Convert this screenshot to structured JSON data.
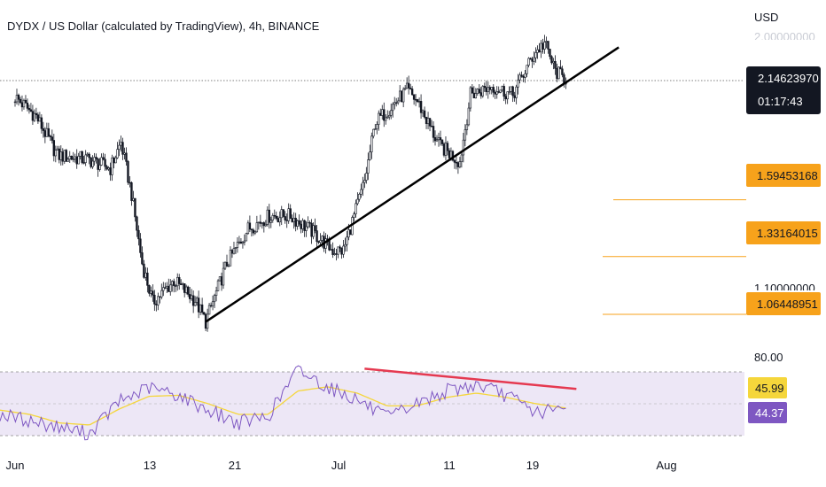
{
  "header": {
    "title": "DYDX / US Dollar (calculated by TradingView), 4h, BINANCE",
    "axis_unit": "USD"
  },
  "price_axis": {
    "ghost_top_label": "2.00000000",
    "ghost_low_label": "1.10000000",
    "last_price": "2.14623970",
    "countdown": "01:17:43",
    "levels": [
      "1.59453168",
      "1.33164015",
      "1.06448951"
    ]
  },
  "rsi_axis": {
    "upper_label": "80.00",
    "ma_value": "45.99",
    "rsi_value": "44.37"
  },
  "x_axis": {
    "ticks": [
      "Jun",
      "13",
      "21",
      "Jul",
      "11",
      "19",
      "Aug"
    ]
  },
  "colors": {
    "candle": "#131722",
    "trendline": "#000000",
    "level": "#f7a21b",
    "rsi": "#7e57c2",
    "rsi_ma": "#f5d63b",
    "rsi_band": "#ede7f6",
    "divergence": "#e53950"
  },
  "chart_data": [
    {
      "type": "candlestick",
      "title": "DYDX / US Dollar (calculated by TradingView), 4h, BINANCE",
      "x_ticks": [
        "Jun",
        "13",
        "21",
        "Jul",
        "11",
        "19",
        "Aug"
      ],
      "y_unit": "USD",
      "last_price": 2.1462397,
      "horizontal_levels": [
        1.59453168,
        1.33164015,
        1.06448951
      ],
      "close_path": [
        {
          "x": "Jun 1",
          "y": 2.07
        },
        {
          "x": "Jun 3",
          "y": 1.98
        },
        {
          "x": "Jun 5",
          "y": 1.8
        },
        {
          "x": "Jun 8",
          "y": 1.78
        },
        {
          "x": "Jun 10",
          "y": 1.74
        },
        {
          "x": "Jun 11",
          "y": 1.86
        },
        {
          "x": "Jun 12",
          "y": 1.62
        },
        {
          "x": "Jun 13",
          "y": 1.3
        },
        {
          "x": "Jun 14",
          "y": 1.12
        },
        {
          "x": "Jun 16",
          "y": 1.22
        },
        {
          "x": "Jun 18",
          "y": 1.13
        },
        {
          "x": "Jun 19",
          "y": 1.03
        },
        {
          "x": "Jun 21",
          "y": 1.3
        },
        {
          "x": "Jun 23",
          "y": 1.46
        },
        {
          "x": "Jun 25",
          "y": 1.52
        },
        {
          "x": "Jun 27",
          "y": 1.52
        },
        {
          "x": "Jun 29",
          "y": 1.45
        },
        {
          "x": "Jul 1",
          "y": 1.36
        },
        {
          "x": "Jul 2",
          "y": 1.36
        },
        {
          "x": "Jul 4",
          "y": 1.68
        },
        {
          "x": "Jul 5",
          "y": 1.95
        },
        {
          "x": "Jul 8",
          "y": 2.1
        },
        {
          "x": "Jul 9",
          "y": 2.05
        },
        {
          "x": "Jul 11",
          "y": 1.85
        },
        {
          "x": "Jul 13",
          "y": 1.77
        },
        {
          "x": "Jul 14",
          "y": 2.08
        },
        {
          "x": "Jul 16",
          "y": 2.12
        },
        {
          "x": "Jul 18",
          "y": 2.08
        },
        {
          "x": "Jul 20",
          "y": 2.27
        },
        {
          "x": "Jul 21",
          "y": 2.32
        },
        {
          "x": "Jul 22",
          "y": 2.19
        },
        {
          "x": "Jul 23",
          "y": 2.15
        }
      ],
      "trendline": [
        {
          "x": "Jun 19",
          "y": 1.03
        },
        {
          "x": "Jul 28",
          "y": 2.3
        }
      ]
    },
    {
      "type": "line",
      "title": "RSI",
      "upper_band": 80.0,
      "series": [
        {
          "values": [
            40,
            34,
            28,
            22,
            52,
            65,
            58,
            44,
            32,
            38,
            82,
            66,
            54,
            36,
            50,
            62,
            68,
            58,
            42,
            44.37
          ]
        },
        {
          "values": [
            44,
            40,
            32,
            30,
            45,
            57,
            58,
            50,
            40,
            40,
            62,
            66,
            60,
            48,
            48,
            56,
            60,
            56,
            50,
            45.99
          ]
        }
      ],
      "divergence_line": [
        {
          "x": "Jul 4",
          "y": 83
        },
        {
          "x": "Jul 24",
          "y": 64
        }
      ]
    }
  ]
}
